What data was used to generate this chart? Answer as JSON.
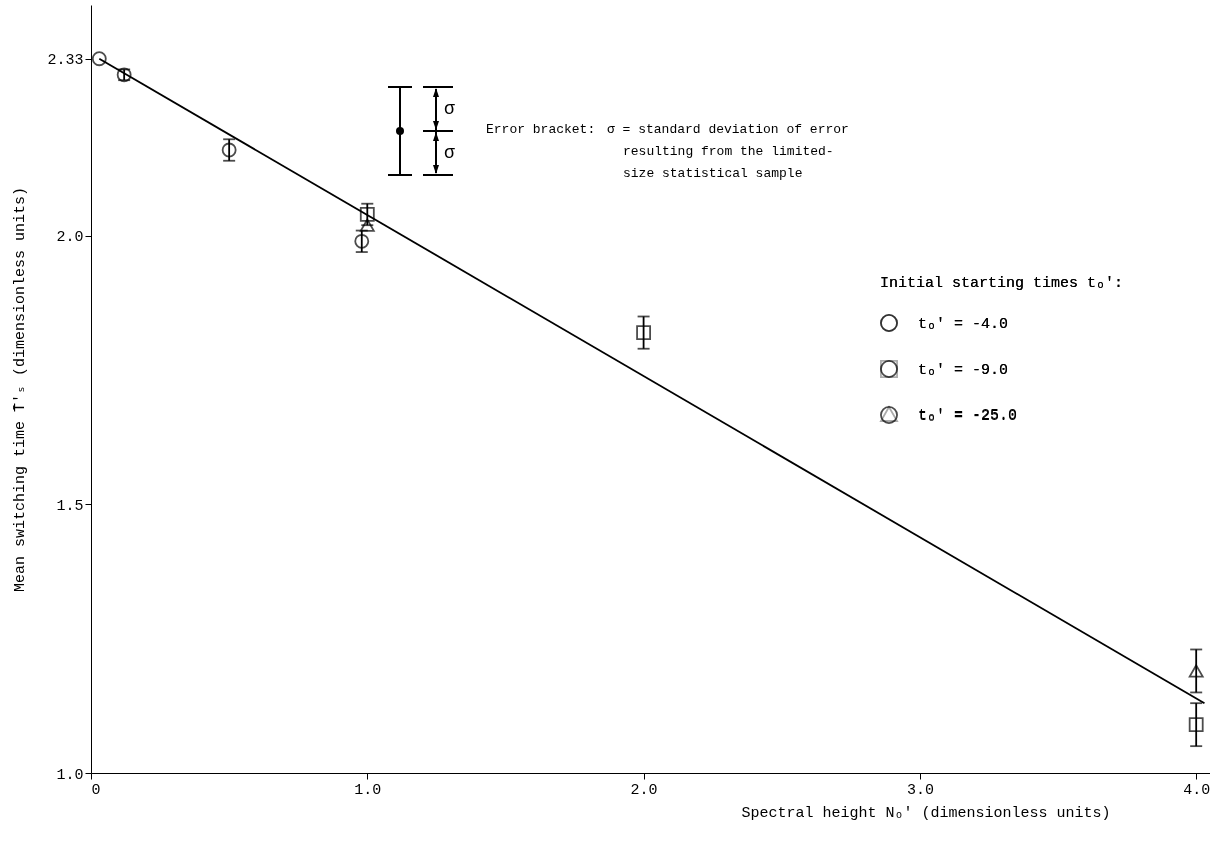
{
  "chart_data": {
    "type": "scatter",
    "xlabel": "Spectral height Nₒ' (dimensionless units)",
    "ylabel": "Mean switching time T̄'ₛ (dimensionless units)",
    "legend_title": "Initial starting times tₒ':",
    "legend": "right",
    "grid": false,
    "xlim": [
      0,
      4.05
    ],
    "ylim": [
      1.0,
      2.43
    ],
    "xticks": [
      0,
      {
        "value": 1,
        "label": "1.0"
      },
      {
        "value": 2,
        "label": "2.0"
      },
      {
        "value": 3,
        "label": "3.0"
      },
      {
        "value": 4,
        "label": "4.0"
      }
    ],
    "yticks": [
      {
        "value": 1,
        "label": "1.0"
      },
      1.5,
      {
        "value": 2,
        "label": "2.0"
      },
      2.33
    ],
    "series": [
      {
        "name": "tₒ' = -4.0",
        "color": "#000000",
        "marker": "circle",
        "x": [
          0.03,
          0.12,
          0.5,
          0.98
        ],
        "values": [
          2.33,
          2.3,
          2.16,
          1.99
        ],
        "errors": [
          null,
          0.01,
          0.02,
          0.02
        ]
      },
      {
        "name": "tₒ' = -9.0",
        "color": "#000000",
        "marker": "square",
        "x": [
          1.0,
          2.0,
          4.0
        ],
        "values": [
          2.04,
          1.82,
          1.09
        ],
        "errors": [
          0.02,
          0.03,
          0.04
        ]
      },
      {
        "name": "tₒ' = -25.0",
        "color": "#000000",
        "marker": "triangle",
        "x": [
          1.0,
          4.0
        ],
        "values": [
          2.02,
          1.19
        ],
        "errors": [
          null,
          0.04
        ]
      },
      {
        "type": "line",
        "color": "#000000",
        "line_style": "solid",
        "x": [
          0.03,
          4.03
        ],
        "values": [
          2.33,
          1.13
        ]
      }
    ],
    "annotations": [
      "Error bracket:",
      "σ = standard deviation of error resulting from the limited-size statistical sample",
      "σ",
      "σ"
    ]
  }
}
